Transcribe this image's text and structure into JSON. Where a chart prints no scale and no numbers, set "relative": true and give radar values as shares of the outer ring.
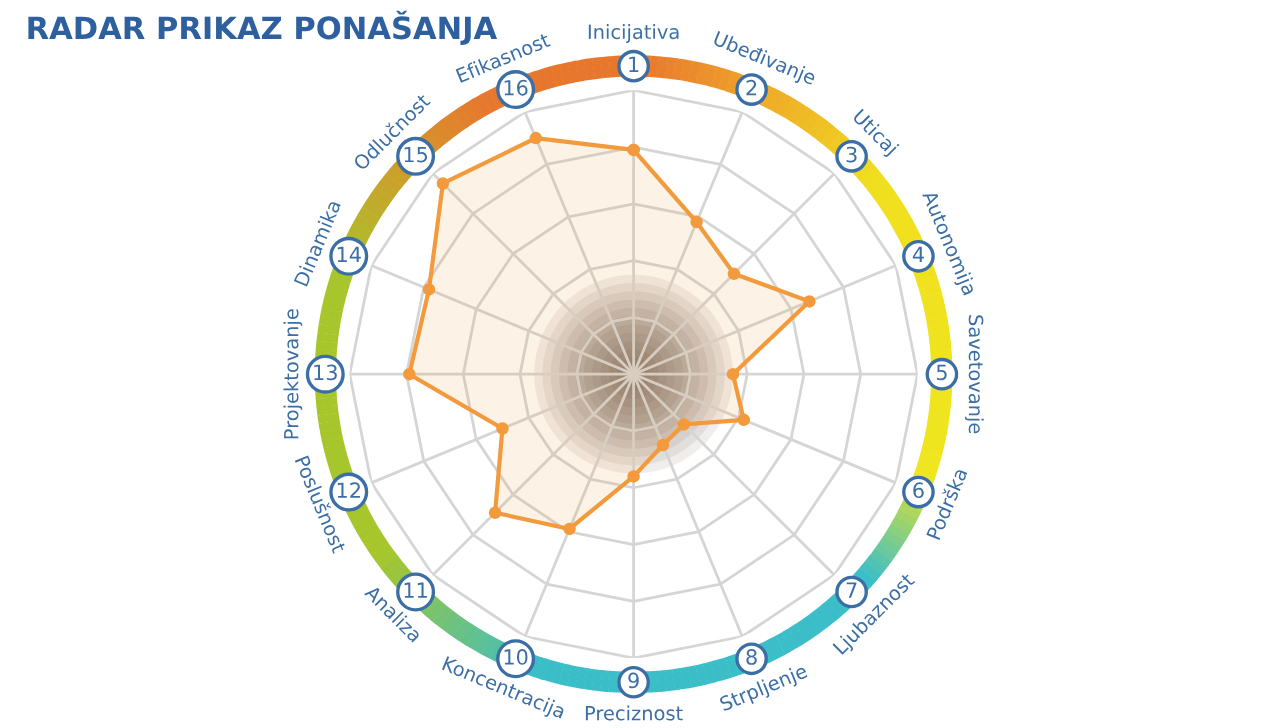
{
  "chart_data": {
    "type": "radar",
    "title": "RADAR PRIKAZ PONAŠANJA",
    "relative": true,
    "categories": [
      "Inicijativa",
      "Ubeđivanje",
      "Uticaj",
      "Autonomija",
      "Savetovanje",
      "Podrška",
      "Ljubaznost",
      "Strpljenje",
      "Preciznost",
      "Koncentracija",
      "Analiza",
      "Poslušnost",
      "Projektovanje",
      "Dinamika",
      "Odlučnost",
      "Efikasnost"
    ],
    "annotations": [
      "1",
      "2",
      "3",
      "4",
      "5",
      "6",
      "7",
      "8",
      "9",
      "10",
      "11",
      "12",
      "13",
      "14",
      "15",
      "16"
    ],
    "series": [
      {
        "color": "#f39a3c",
        "values": [
          0.79,
          0.58,
          0.5,
          0.67,
          0.35,
          0.42,
          0.25,
          0.27,
          0.36,
          0.59,
          0.69,
          0.5,
          0.79,
          0.78,
          0.95,
          0.9
        ]
      }
    ],
    "marker": "circle",
    "grid": true
  }
}
